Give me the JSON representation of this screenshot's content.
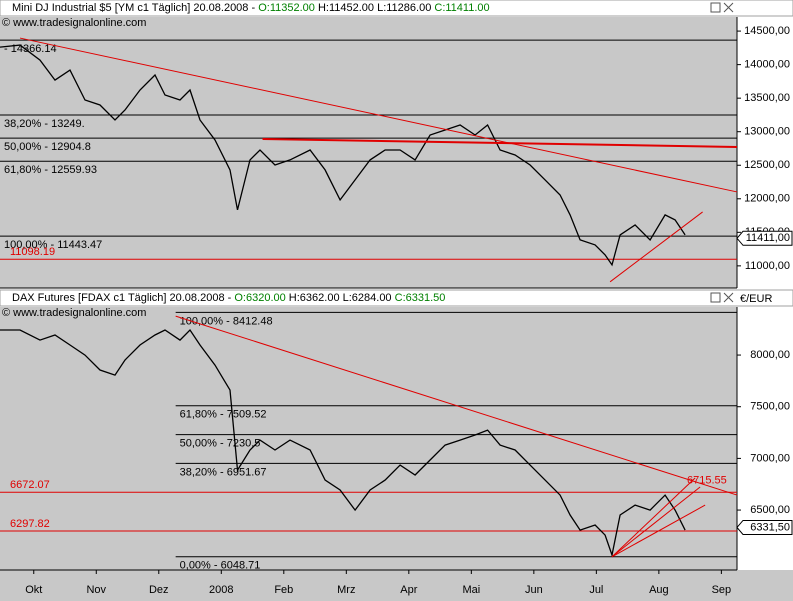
{
  "chart_data": [
    {
      "type": "line",
      "title": "Mini DJ Industrial $5 [YM c1  Täglich] 20.08.2008 -",
      "ohlc": [
        {
          "label": "O:11352.00",
          "color": "#008000"
        },
        {
          "label": "H:11452.00 L:11286.00",
          "color": "#000000"
        },
        {
          "label": "C:11411.00",
          "color": "#008000"
        }
      ],
      "watermark": "© www.tradesignalonline.com",
      "xlim": [
        -0.54,
        11.25
      ],
      "ylim": [
        10670,
        14710
      ],
      "yticks": [
        {
          "value": 14500,
          "label": "14500,00"
        },
        {
          "value": 14000,
          "label": "14000,00"
        },
        {
          "value": 13500,
          "label": "13500,00"
        },
        {
          "value": 13000,
          "label": "13000,00"
        },
        {
          "value": 12500,
          "label": "12500,00"
        },
        {
          "value": 12000,
          "label": "12000,00"
        },
        {
          "value": 11500,
          "label": "11500,00"
        },
        {
          "value": 11000,
          "label": "11000,00"
        }
      ],
      "x": [
        -0.54,
        -0.22,
        0.1,
        0.34,
        0.58,
        0.82,
        1.06,
        1.3,
        1.46,
        1.7,
        1.94,
        2.1,
        2.34,
        2.5,
        2.66,
        2.9,
        3.14,
        3.26,
        3.46,
        3.62,
        3.86,
        4.1,
        4.42,
        4.66,
        4.9,
        5.14,
        5.38,
        5.62,
        5.86,
        6.1,
        6.34,
        6.58,
        6.82,
        7.06,
        7.26,
        7.46,
        7.7,
        7.94,
        8.18,
        8.42,
        8.58,
        8.74,
        8.98,
        9.14,
        9.25,
        9.38,
        9.62,
        9.86,
        10.1,
        10.26,
        10.42
      ],
      "values": [
        14262,
        14291,
        14068,
        13770,
        13919,
        13472,
        13398,
        13174,
        13323,
        13621,
        13845,
        13547,
        13472,
        13621,
        13174,
        12877,
        12430,
        11834,
        12579,
        12728,
        12504,
        12579,
        12728,
        12430,
        11983,
        12281,
        12579,
        12728,
        12728,
        12579,
        12951,
        13025,
        13100,
        12951,
        13100,
        12728,
        12653,
        12504,
        12281,
        12057,
        11760,
        11387,
        11313,
        11164,
        11015,
        11462,
        11611,
        11387,
        11760,
        11685,
        11462
      ],
      "color": "#000000",
      "levels": [
        {
          "value": 14366.14,
          "label": "- 14366.14",
          "color": "#000000"
        },
        {
          "value": 13249,
          "label": "38,20% - 13249.",
          "color": "#000000"
        },
        {
          "value": 12904.8,
          "label": "50,00% - 12904.8",
          "color": "#000000"
        },
        {
          "value": 12559.93,
          "label": "61,80% - 12559.93",
          "color": "#000000"
        },
        {
          "value": 11443.47,
          "label": "100,00% - 11443.47",
          "color": "#000000"
        },
        {
          "value": 11098.19,
          "label": "11098.19",
          "color": "#e00000"
        }
      ],
      "trendlines": [
        {
          "x": [
            -0.22,
            11.25
          ],
          "values": [
            14396,
            12102
          ],
          "color": "#e00000",
          "width": 1
        },
        {
          "x": [
            3.66,
            11.25
          ],
          "values": [
            12891,
            12772
          ],
          "color": "#e00000",
          "width": 2
        },
        {
          "x": [
            9.22,
            10.7
          ],
          "values": [
            10762,
            11804
          ],
          "color": "#e00000",
          "width": 1
        }
      ],
      "last": {
        "value": 11411,
        "label": "11411,00"
      }
    },
    {
      "type": "line",
      "title": "DAX Futures [FDAX c1  Täglich] 20.08.2008 -",
      "ohlc": [
        {
          "label": "O:6320.00",
          "color": "#008000"
        },
        {
          "label": "H:6362.00 L:6284.00",
          "color": "#000000"
        },
        {
          "label": "C:6331.50",
          "color": "#008000"
        }
      ],
      "watermark": "© www.tradesignalonline.com",
      "unit": "€/EUR",
      "xlim": [
        -0.54,
        11.25
      ],
      "ylim": [
        5920,
        8465
      ],
      "yticks": [
        {
          "value": 8000,
          "label": "8000,00"
        },
        {
          "value": 7500,
          "label": "7500,00"
        },
        {
          "value": 7000,
          "label": "7000,00"
        },
        {
          "value": 6500,
          "label": "6500,00"
        }
      ],
      "xticks": [
        {
          "value": 0,
          "label": "Okt"
        },
        {
          "value": 1,
          "label": "Nov"
        },
        {
          "value": 2,
          "label": "Dez"
        },
        {
          "value": 3,
          "label": "2008"
        },
        {
          "value": 4,
          "label": "Feb"
        },
        {
          "value": 5,
          "label": "Mrz"
        },
        {
          "value": 6,
          "label": "Apr"
        },
        {
          "value": 7,
          "label": "Mai"
        },
        {
          "value": 8,
          "label": "Jun"
        },
        {
          "value": 9,
          "label": "Jul"
        },
        {
          "value": 10,
          "label": "Aug"
        },
        {
          "value": 11,
          "label": "Sep"
        }
      ],
      "x": [
        -0.54,
        -0.22,
        0.1,
        0.34,
        0.58,
        0.82,
        1.06,
        1.3,
        1.46,
        1.7,
        1.94,
        2.1,
        2.34,
        2.5,
        2.66,
        2.9,
        3.14,
        3.26,
        3.46,
        3.62,
        3.86,
        4.1,
        4.42,
        4.66,
        4.9,
        5.14,
        5.38,
        5.62,
        5.86,
        6.1,
        6.34,
        6.58,
        6.82,
        7.06,
        7.26,
        7.46,
        7.7,
        7.94,
        8.18,
        8.42,
        8.58,
        8.74,
        8.98,
        9.14,
        9.25,
        9.38,
        9.62,
        9.86,
        10.1,
        10.26,
        10.42
      ],
      "values": [
        8242,
        8242,
        8145,
        8194,
        8097,
        8000,
        7855,
        7806,
        7952,
        8097,
        8194,
        8242,
        8145,
        8242,
        8097,
        7903,
        7661,
        6887,
        7081,
        7177,
        7081,
        7177,
        7081,
        6790,
        6694,
        6500,
        6694,
        6790,
        6935,
        6839,
        6984,
        7129,
        7177,
        7226,
        7274,
        7129,
        7081,
        6935,
        6790,
        6645,
        6452,
        6306,
        6355,
        6258,
        6065,
        6452,
        6548,
        6500,
        6645,
        6500,
        6306
      ],
      "color": "#000000",
      "levels": [
        {
          "value": 8412.48,
          "label": "100,00% - 8412.48",
          "color": "#000000",
          "x0": 2.27
        },
        {
          "value": 7509.52,
          "label": "61,80% - 7509.52",
          "color": "#000000",
          "x0": 2.27
        },
        {
          "value": 7230.5,
          "label": "50,00% - 7230.5",
          "color": "#000000",
          "x0": 2.27
        },
        {
          "value": 6951.67,
          "label": "38,20% - 6951.67",
          "color": "#000000",
          "x0": 2.27
        },
        {
          "value": 6672.07,
          "label": "6672.07",
          "color": "#e00000"
        },
        {
          "value": 6297.82,
          "label": "6297.82",
          "color": "#e00000"
        },
        {
          "value": 6048.71,
          "label": "0,00% - 6048.71",
          "color": "#000000",
          "x0": 2.27
        }
      ],
      "trendlines": [
        {
          "x": [
            2.27,
            11.25
          ],
          "values": [
            8377,
            6645
          ],
          "color": "#e00000",
          "width": 1
        },
        {
          "x": [
            9.25,
            10.74
          ],
          "values": [
            6048,
            6548
          ],
          "color": "#e00000",
          "width": 1
        },
        {
          "x": [
            9.25,
            10.66
          ],
          "values": [
            6048,
            6723
          ],
          "color": "#e00000",
          "width": 1
        },
        {
          "x": [
            9.25,
            10.58
          ],
          "values": [
            6048,
            6810
          ],
          "color": "#e00000",
          "width": 1
        }
      ],
      "annotations": [
        {
          "value": 6715.55,
          "x": 10.45,
          "color": "#e00000"
        }
      ],
      "last": {
        "value": 6331.5,
        "label": "6331,50"
      }
    }
  ]
}
